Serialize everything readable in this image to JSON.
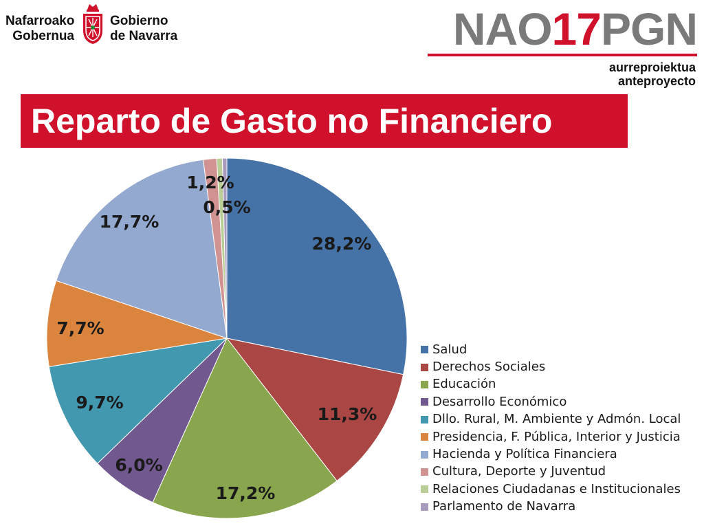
{
  "header": {
    "logo_left_line1": "Nafarroako",
    "logo_left_line2": "Gobernua",
    "logo_right_line1": "Gobierno",
    "logo_right_line2": "de Navarra",
    "brand_prefix": "NAO",
    "brand_number": "17",
    "brand_suffix": "PGN",
    "brand_sub1": "aurreproiektua",
    "brand_sub2": "anteproyecto"
  },
  "colors": {
    "brand_red": "#d0112b",
    "brand_gray": "#7a7a7a"
  },
  "chart_data": {
    "type": "pie",
    "title": "Reparto de Gasto no Financiero",
    "categories": [
      "Salud",
      "Derechos Sociales",
      "Educación",
      "Desarrollo Económico",
      "Dllo. Rural, M. Ambiente y Admón. Local",
      "Presidencia, F. Pública, Interior y Justicia",
      "Hacienda y Política Financiera",
      "Cultura, Deporte y Juventud",
      "Relaciones Ciudadanas e Institucionales",
      "Parlamento de Navarra"
    ],
    "values": [
      28.2,
      11.3,
      17.2,
      6.0,
      9.7,
      7.7,
      17.7,
      1.2,
      0.5,
      0.4
    ],
    "data_labels": [
      "28,2%",
      "11,3%",
      "17,2%",
      "6,0%",
      "9,7%",
      "7,7%",
      "17,7%",
      "1,2%",
      "0,5%",
      ""
    ],
    "colors": [
      "#4572a7",
      "#aa4643",
      "#89a54e",
      "#71588f",
      "#4198af",
      "#db843d",
      "#93a9cf",
      "#d19392",
      "#b9cd96",
      "#a99bbd"
    ],
    "legend_position": "bottom-right"
  }
}
